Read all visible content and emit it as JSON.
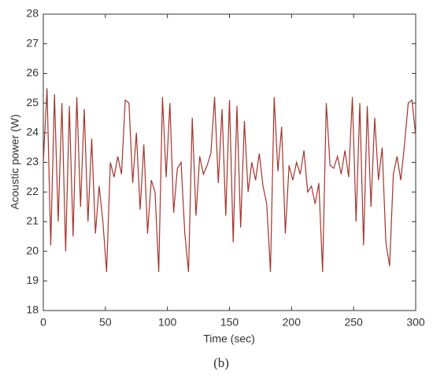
{
  "chart_data": {
    "type": "line",
    "xlabel": "Time (sec)",
    "ylabel": "Acoustic power (W)",
    "caption": "(b)",
    "x": [
      0,
      3,
      6,
      9,
      12,
      15,
      18,
      21,
      24,
      27,
      30,
      33,
      36,
      39,
      42,
      45,
      48,
      51,
      54,
      57,
      60,
      63,
      66,
      69,
      72,
      75,
      78,
      81,
      84,
      87,
      90,
      93,
      96,
      99,
      102,
      105,
      108,
      111,
      114,
      117,
      120,
      123,
      126,
      129,
      132,
      135,
      138,
      141,
      144,
      147,
      150,
      153,
      156,
      159,
      162,
      165,
      168,
      171,
      174,
      177,
      180,
      183,
      186,
      189,
      192,
      195,
      198,
      201,
      204,
      207,
      210,
      213,
      216,
      219,
      222,
      225,
      228,
      231,
      234,
      237,
      240,
      243,
      246,
      249,
      252,
      255,
      258,
      261,
      264,
      267,
      270,
      273,
      276,
      279,
      282,
      285,
      288,
      291,
      294,
      297,
      300
    ],
    "series": [
      {
        "color": "#a3352c",
        "values": [
          23.0,
          25.5,
          20.2,
          25.3,
          21.0,
          25.0,
          20.0,
          24.9,
          20.5,
          25.2,
          21.5,
          24.8,
          21.0,
          23.8,
          20.6,
          22.2,
          21.0,
          19.3,
          23.0,
          22.5,
          23.2,
          22.6,
          25.1,
          25.0,
          22.3,
          24.0,
          21.4,
          23.6,
          20.6,
          22.4,
          22.0,
          19.3,
          25.2,
          22.5,
          25.0,
          21.3,
          22.8,
          23.0,
          20.6,
          19.3,
          24.5,
          21.2,
          23.2,
          22.6,
          22.9,
          23.3,
          25.2,
          22.3,
          24.8,
          21.2,
          25.1,
          20.3,
          24.9,
          20.8,
          24.4,
          22.0,
          23.0,
          22.4,
          23.3,
          22.2,
          21.6,
          19.3,
          25.2,
          22.7,
          24.2,
          20.6,
          22.9,
          22.4,
          23.0,
          22.6,
          23.4,
          22.0,
          22.2,
          21.6,
          22.3,
          19.3,
          25.0,
          22.9,
          22.8,
          23.2,
          22.6,
          23.4,
          22.5,
          25.2,
          21.0,
          25.0,
          20.2,
          24.9,
          21.5,
          24.5,
          22.4,
          23.5,
          20.3,
          19.5,
          22.6,
          23.2,
          22.4,
          23.6,
          25.0,
          25.1,
          23.9
        ]
      }
    ],
    "xlim": [
      0,
      300
    ],
    "xticks": [
      0,
      50,
      100,
      150,
      200,
      250,
      300
    ],
    "ylim": [
      18,
      28
    ],
    "yticks": [
      18,
      19,
      20,
      21,
      22,
      23,
      24,
      25,
      26,
      27,
      28
    ]
  }
}
